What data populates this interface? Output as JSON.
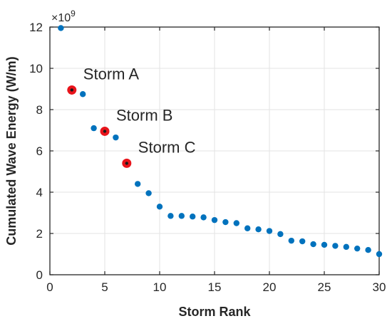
{
  "chart_data": {
    "type": "scatter",
    "xlabel": "Storm Rank",
    "ylabel": "Cumulated Wave Energy (W/m)",
    "xlim": [
      0,
      30
    ],
    "ylim": [
      0,
      12
    ],
    "xticks": [
      0,
      5,
      10,
      15,
      20,
      25,
      30
    ],
    "yticks": [
      0,
      2,
      4,
      6,
      8,
      10,
      12
    ],
    "y_multiplier_base": "×10",
    "y_multiplier_exp": "9",
    "grid": true,
    "point_color": "#0072BD",
    "highlight_color": "#E8141B",
    "x": [
      1,
      2,
      3,
      4,
      5,
      6,
      7,
      8,
      9,
      10,
      11,
      12,
      13,
      14,
      15,
      16,
      17,
      18,
      19,
      20,
      21,
      22,
      23,
      24,
      25,
      26,
      27,
      28,
      29,
      30
    ],
    "y": [
      11.95,
      8.95,
      8.75,
      7.1,
      6.95,
      6.65,
      5.4,
      4.4,
      3.95,
      3.3,
      2.85,
      2.85,
      2.82,
      2.78,
      2.65,
      2.55,
      2.5,
      2.25,
      2.2,
      2.12,
      1.97,
      1.65,
      1.62,
      1.48,
      1.45,
      1.4,
      1.35,
      1.27,
      1.2,
      1.0
    ],
    "annotations": [
      {
        "label": "Storm A",
        "x": 2,
        "y": 8.95
      },
      {
        "label": "Storm B",
        "x": 5,
        "y": 6.95
      },
      {
        "label": "Storm C",
        "x": 7,
        "y": 5.4
      }
    ]
  }
}
